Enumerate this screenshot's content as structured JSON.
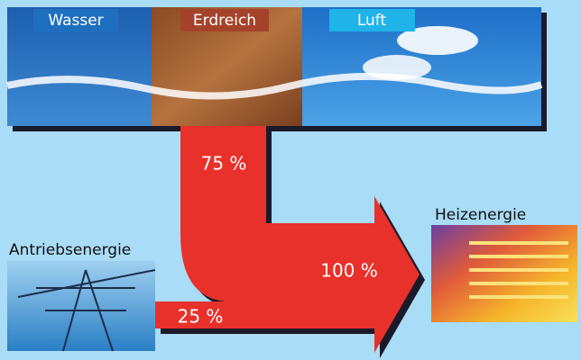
{
  "sources": [
    "Wasser",
    "Erdreich",
    "Luft"
  ],
  "flows": {
    "environment": "75 %",
    "drive": "25 %",
    "total": "100 %"
  },
  "labels": {
    "drive": "Antriebsenergie",
    "heat": "Heizenergie"
  }
}
